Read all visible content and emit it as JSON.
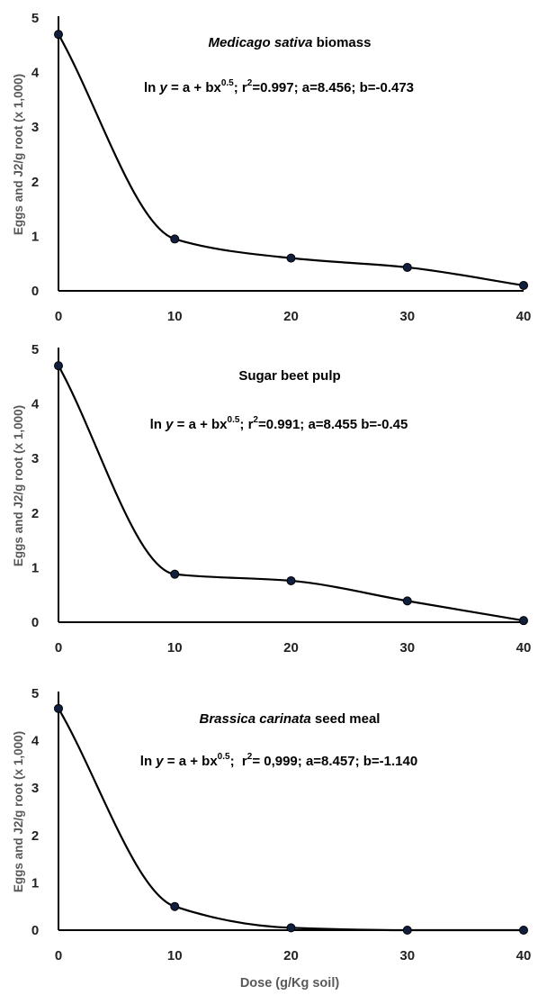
{
  "chart_data": [
    {
      "type": "line",
      "title_italic": "Medicago sativa",
      "title_rest": " biomass",
      "equation": {
        "lead": "ln ",
        "y": "y",
        "mid": " = a + bx",
        "exp": "0.5",
        "tail": "; r",
        "r_exp": "2",
        "rest": "=0.997; a=8.456; b=-0.473"
      },
      "ylabel": "Eggs and J2/g root (x 1,000)",
      "x": [
        0,
        10,
        20,
        30,
        40
      ],
      "values": [
        4.7,
        0.95,
        0.6,
        0.43,
        0.1
      ],
      "xlim": [
        0,
        40
      ],
      "ylim": [
        0,
        5
      ],
      "xticks": [
        "0",
        "10",
        "20",
        "30",
        "40"
      ],
      "yticks": [
        "0",
        "1",
        "2",
        "3",
        "4",
        "5"
      ],
      "grid": false
    },
    {
      "type": "line",
      "title_italic": "",
      "title_rest": "Sugar beet pulp",
      "equation": {
        "lead": "ln ",
        "y": "y",
        "mid": " = a + bx",
        "exp": "0.5",
        "tail": "; r",
        "r_exp": "2",
        "rest": "=0.991; a=8.455 b=-0.45"
      },
      "ylabel": "Eggs and J2/g root  (x 1,000)",
      "x": [
        0,
        10,
        20,
        30,
        40
      ],
      "values": [
        4.7,
        0.88,
        0.76,
        0.39,
        0.03
      ],
      "xlim": [
        0,
        40
      ],
      "ylim": [
        0,
        5
      ],
      "xticks": [
        "0",
        "10",
        "20",
        "30",
        "40"
      ],
      "yticks": [
        "0",
        "1",
        "2",
        "3",
        "4",
        "5"
      ],
      "grid": false
    },
    {
      "type": "line",
      "title_italic": "Brassica carinata",
      "title_rest": " seed meal",
      "equation": {
        "lead": "ln ",
        "y": "y",
        "mid": " = a + bx",
        "exp": "0.5",
        "tail": ";  r",
        "r_exp": "2",
        "rest": "= 0,999; a=8.457; b=-1.140"
      },
      "ylabel": "Eggs and J2/g root  (x 1,000)",
      "x": [
        0,
        10,
        20,
        30,
        40
      ],
      "values": [
        4.68,
        0.5,
        0.05,
        0.0,
        0.0
      ],
      "xlim": [
        0,
        40
      ],
      "ylim": [
        0,
        5
      ],
      "xticks": [
        "0",
        "10",
        "20",
        "30",
        "40"
      ],
      "yticks": [
        "0",
        "1",
        "2",
        "3",
        "4",
        "5"
      ],
      "grid": false
    }
  ],
  "shared_xlabel": "Dose (g/Kg soil)"
}
